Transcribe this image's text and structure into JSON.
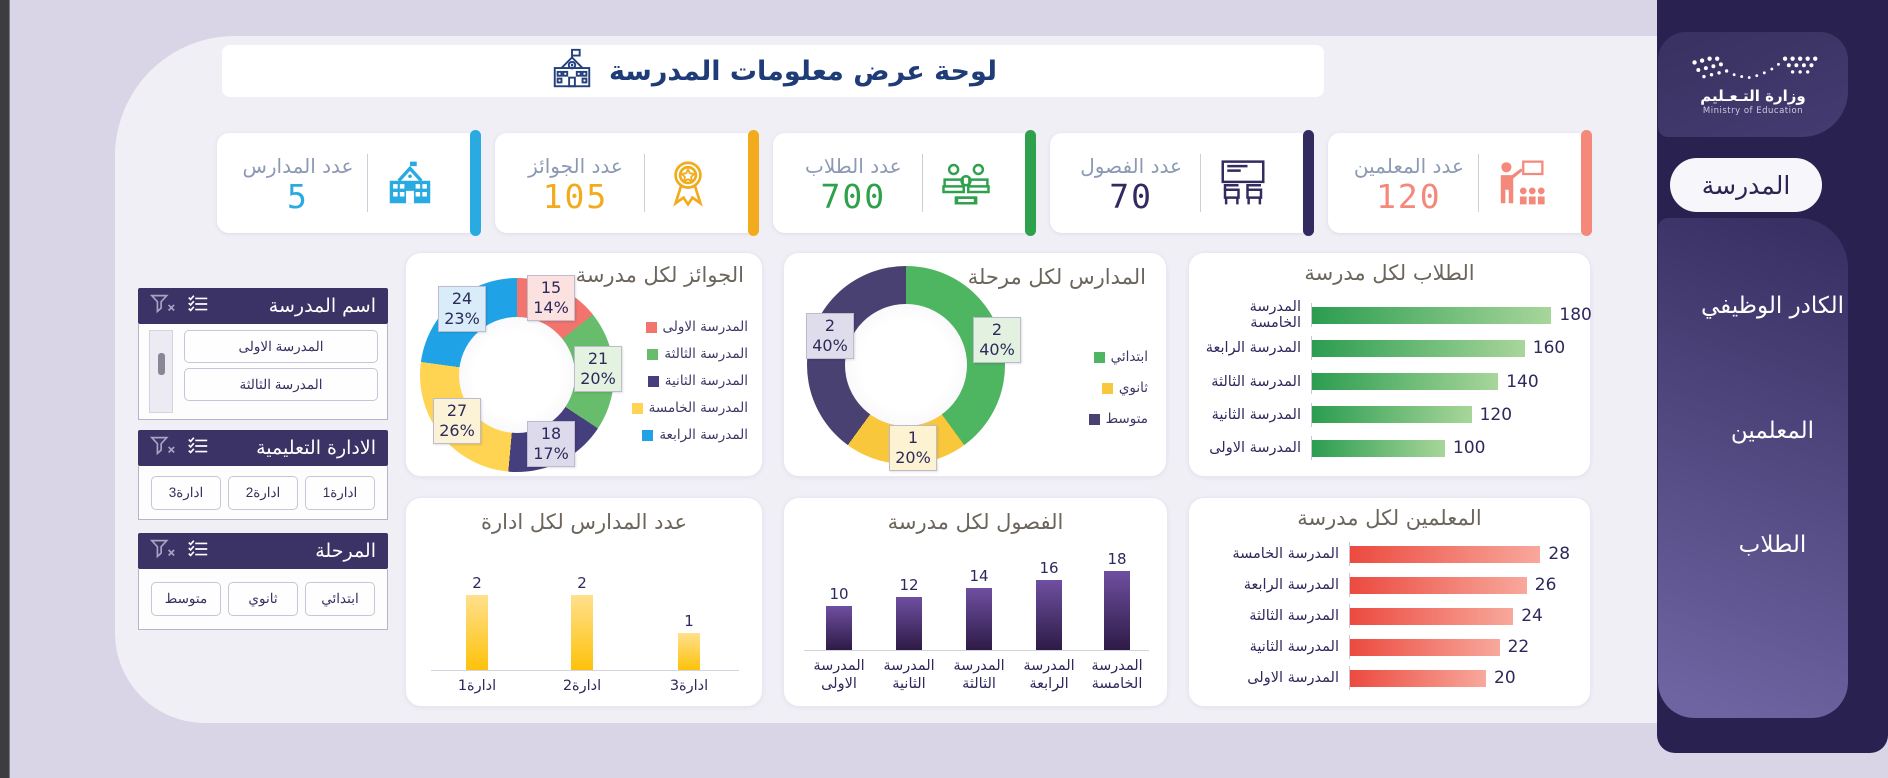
{
  "header": {
    "title": "لوحة عرض معلومات المدرسة"
  },
  "sidebar": {
    "logo": {
      "arabic": "وزارة التـعـليم",
      "english": "Ministry of Education"
    },
    "items": [
      {
        "label": "المدرسة",
        "active": true
      },
      {
        "label": "الكادر الوظيفي",
        "active": false
      },
      {
        "label": "المعلمين",
        "active": false
      },
      {
        "label": "الطلاب",
        "active": false
      }
    ]
  },
  "kpis": [
    {
      "label": "عدد المدارس",
      "value": "5",
      "color": "#29abe2",
      "icon": "school-icon"
    },
    {
      "label": "عدد الجوائز",
      "value": "105",
      "color": "#f2ab1d",
      "icon": "medal-icon"
    },
    {
      "label": "عدد الطلاب",
      "value": "700",
      "color": "#2fa14d",
      "icon": "students-icon"
    },
    {
      "label": "عدد الفصول",
      "value": "70",
      "color": "#322b5f",
      "icon": "classroom-icon"
    },
    {
      "label": "عدد المعلمين",
      "value": "120",
      "color": "#f4897b",
      "icon": "teacher-icon"
    }
  ],
  "slicers": [
    {
      "title": "اسم المدرسة",
      "items": [
        "المدرسة الاولى",
        "المدرسة الثالثة"
      ]
    },
    {
      "title": "الادارة التعليمية",
      "items": [
        "ادارة1",
        "ادارة2",
        "ادارة3"
      ]
    },
    {
      "title": "المرحلة",
      "items": [
        "ابتدائي",
        "ثانوي",
        "متوسط"
      ]
    }
  ],
  "chart_data": [
    {
      "type": "pie",
      "title": "الجوائز لكل مدرسة",
      "labels": [
        "المدرسة الاولى",
        "المدرسة الثالثة",
        "المدرسة الثانية",
        "المدرسة الخامسة",
        "المدرسة الرابعة"
      ],
      "values": [
        15,
        21,
        18,
        27,
        24
      ],
      "percents": [
        "14%",
        "20%",
        "17%",
        "26%",
        "23%"
      ],
      "colors": [
        "#f2746c",
        "#68bd6c",
        "#463f7d",
        "#ffd453",
        "#20a3e6"
      ],
      "tints": [
        "#fbe2e0",
        "#e4f2e0",
        "#dddbeb",
        "#fcf3d6",
        "#d8ecf9"
      ],
      "legend_position": "right",
      "doughnut": true
    },
    {
      "type": "pie",
      "title": "المدارس لكل مرحلة",
      "labels": [
        "ابتدائي",
        "ثانوي",
        "متوسط"
      ],
      "values": [
        2,
        1,
        2
      ],
      "percents": [
        "40%",
        "20%",
        "40%"
      ],
      "colors": [
        "#4eb561",
        "#f9c73c",
        "#4a4173"
      ],
      "tints": [
        "#e3f1e0",
        "#fdf3d2",
        "#dfddeb"
      ],
      "legend_position": "right",
      "doughnut": true
    },
    {
      "type": "bar",
      "title": "الطلاب لكل مدرسة",
      "categories": [
        "المدرسة الخامسة",
        "المدرسة الرابعة",
        "المدرسة الثالثة",
        "المدرسة الثانية",
        "المدرسة الاولى"
      ],
      "values": [
        180,
        160,
        140,
        120,
        100
      ],
      "color_gradient": [
        "#2b9d50",
        "#a8d69a"
      ],
      "xlim": [
        0,
        200
      ]
    },
    {
      "type": "column",
      "title": "عدد المدارس لكل ادارة",
      "categories": [
        "ادارة1",
        "ادارة2",
        "ادارة3"
      ],
      "values": [
        2,
        2,
        1
      ],
      "color_gradient": [
        "#ffe08d",
        "#fec20a"
      ],
      "ylim": [
        0,
        2.5
      ]
    },
    {
      "type": "column",
      "title": "الفصول لكل مدرسة",
      "categories": [
        "المدرسة الاولى",
        "المدرسة الثانية",
        "المدرسة الثالثة",
        "المدرسة الرابعة",
        "المدرسة الخامسة"
      ],
      "values": [
        10,
        12,
        14,
        16,
        18
      ],
      "color_gradient": [
        "#6f4fa1",
        "#2d1b46"
      ],
      "ylim": [
        0,
        20
      ]
    },
    {
      "type": "bar",
      "title": "المعلمين لكل مدرسة",
      "categories": [
        "المدرسة الخامسة",
        "المدرسة الرابعة",
        "المدرسة الثالثة",
        "المدرسة الثانية",
        "المدرسة الاولى"
      ],
      "values": [
        28,
        26,
        24,
        22,
        20
      ],
      "color_gradient": [
        "#ec4a3f",
        "#f8a89c"
      ],
      "xlim": [
        0,
        30
      ]
    }
  ]
}
